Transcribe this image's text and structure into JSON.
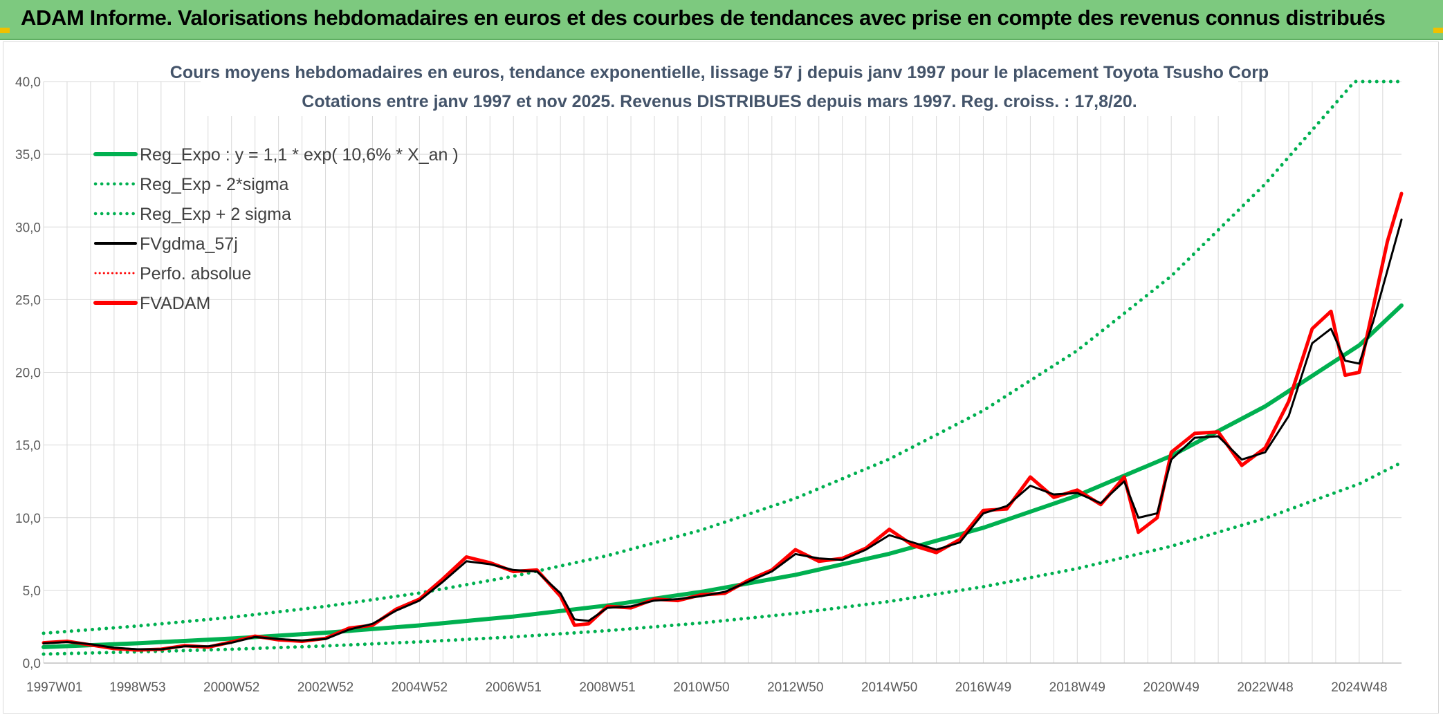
{
  "banner": {
    "title": "ADAM Informe. Valorisations hebdomadaires en euros et des courbes de tendances avec prise en compte des revenus connus distribués"
  },
  "colors": {
    "banner_bg": "#7dc97f",
    "regression": "#00b050",
    "fvgdma": "#000000",
    "fvadam": "#ff0000",
    "perfo": "#ff0000",
    "grid": "#d9d9d9",
    "title_text": "#44546a"
  },
  "chart_data": {
    "type": "line",
    "title": "Cours moyens hebdomadaires en euros, tendance exponentielle, lissage 57 j depuis janv 1997 pour le placement Toyota Tsusho Corp",
    "subtitle": "Cotations entre janv 1997 et nov 2025. Revenus DISTRIBUES depuis mars 1997. Reg. croiss. : 17,8/20.",
    "xlabel": "",
    "ylabel": "",
    "ylim": [
      0,
      40
    ],
    "xlim": [
      1997.0,
      2025.9
    ],
    "yticks": [
      "0,0",
      "5,0",
      "10,0",
      "15,0",
      "20,0",
      "25,0",
      "30,0",
      "35,0",
      "40,0"
    ],
    "xticks": [
      {
        "label": "1997W01",
        "x": 1997.0
      },
      {
        "label": "1998W53",
        "x": 1999.0
      },
      {
        "label": "2000W52",
        "x": 2001.0
      },
      {
        "label": "2002W52",
        "x": 2003.0
      },
      {
        "label": "2004W52",
        "x": 2005.0
      },
      {
        "label": "2006W51",
        "x": 2007.0
      },
      {
        "label": "2008W51",
        "x": 2009.0
      },
      {
        "label": "2010W50",
        "x": 2011.0
      },
      {
        "label": "2012W50",
        "x": 2013.0
      },
      {
        "label": "2014W50",
        "x": 2015.0
      },
      {
        "label": "2016W49",
        "x": 2017.0
      },
      {
        "label": "2018W49",
        "x": 2019.0
      },
      {
        "label": "2020W49",
        "x": 2021.0
      },
      {
        "label": "2022W48",
        "x": 2023.0
      },
      {
        "label": "2024W48",
        "x": 2025.0
      }
    ],
    "grid": true,
    "legend_position": "top-left",
    "legend": [
      {
        "label": "Reg_Expo : y = 1,1 * exp( 10,6% *  X_an )",
        "style": "solid-green-thick"
      },
      {
        "label": "Reg_Exp - 2*sigma",
        "style": "dotted-green"
      },
      {
        "label": "Reg_Exp + 2 sigma",
        "style": "dotted-green"
      },
      {
        "label": "FVgdma_57j",
        "style": "solid-black"
      },
      {
        "label": "Perfo. absolue",
        "style": "dotted-red"
      },
      {
        "label": "FVADAM",
        "style": "solid-red-thick"
      }
    ],
    "series": [
      {
        "name": "Reg_Expo : y = 1,1 * exp( 10,6% *  X_an )",
        "x": [
          1997.0,
          1999.0,
          2001.0,
          2003.0,
          2005.0,
          2007.0,
          2009.0,
          2011.0,
          2013.0,
          2015.0,
          2017.0,
          2019.0,
          2021.0,
          2023.0,
          2025.0,
          2025.9
        ],
        "values": [
          1.1,
          1.36,
          1.69,
          2.09,
          2.59,
          3.2,
          3.96,
          4.9,
          6.07,
          7.52,
          9.31,
          11.52,
          14.26,
          17.66,
          21.86,
          24.6
        ]
      },
      {
        "name": "Reg_Exp - 2*sigma",
        "x": [
          1997.0,
          1999.0,
          2001.0,
          2003.0,
          2005.0,
          2007.0,
          2009.0,
          2011.0,
          2013.0,
          2015.0,
          2017.0,
          2019.0,
          2021.0,
          2023.0,
          2025.0,
          2025.9
        ],
        "values": [
          0.62,
          0.77,
          0.95,
          1.18,
          1.46,
          1.8,
          2.23,
          2.76,
          3.42,
          4.24,
          5.25,
          6.5,
          8.04,
          9.96,
          12.33,
          13.8
        ]
      },
      {
        "name": "Reg_Exp + 2 sigma",
        "x": [
          1997.0,
          1999.0,
          2001.0,
          2003.0,
          2005.0,
          2007.0,
          2009.0,
          2011.0,
          2013.0,
          2015.0,
          2017.0,
          2019.0,
          2021.0,
          2023.0,
          2024.9,
          2025.9
        ],
        "values": [
          2.05,
          2.55,
          3.15,
          3.9,
          4.82,
          5.97,
          7.39,
          9.15,
          11.33,
          14.03,
          17.37,
          21.5,
          26.62,
          32.96,
          40.0,
          40.0
        ]
      },
      {
        "name": "FVgdma_57j",
        "x": [
          1997.0,
          1997.5,
          1998.0,
          1998.5,
          1999.0,
          1999.5,
          2000.0,
          2000.5,
          2001.0,
          2001.5,
          2002.0,
          2002.5,
          2003.0,
          2003.5,
          2004.0,
          2004.5,
          2005.0,
          2005.5,
          2006.0,
          2006.5,
          2007.0,
          2007.5,
          2008.0,
          2008.3,
          2008.6,
          2009.0,
          2009.5,
          2010.0,
          2010.5,
          2011.0,
          2011.5,
          2012.0,
          2012.5,
          2013.0,
          2013.5,
          2014.0,
          2014.5,
          2015.0,
          2015.5,
          2016.0,
          2016.5,
          2017.0,
          2017.5,
          2018.0,
          2018.5,
          2019.0,
          2019.5,
          2020.0,
          2020.3,
          2020.7,
          2021.0,
          2021.5,
          2022.0,
          2022.5,
          2023.0,
          2023.5,
          2024.0,
          2024.4,
          2024.7,
          2025.0,
          2025.3,
          2025.6,
          2025.9
        ],
        "values": [
          1.35,
          1.45,
          1.3,
          1.05,
          0.95,
          0.95,
          1.15,
          1.15,
          1.4,
          1.8,
          1.65,
          1.55,
          1.65,
          2.3,
          2.7,
          3.6,
          4.3,
          5.6,
          7.0,
          6.8,
          6.4,
          6.3,
          4.8,
          3.0,
          2.9,
          3.8,
          3.9,
          4.3,
          4.4,
          4.6,
          4.9,
          5.6,
          6.3,
          7.5,
          7.2,
          7.1,
          7.8,
          8.8,
          8.3,
          7.8,
          8.3,
          10.3,
          10.8,
          12.2,
          11.6,
          11.7,
          11.0,
          12.5,
          10.0,
          10.3,
          14.0,
          15.5,
          15.6,
          14.0,
          14.5,
          17.0,
          22.0,
          23.0,
          20.8,
          20.6,
          23.5,
          27.0,
          30.5
        ]
      },
      {
        "name": "FVADAM",
        "x": [
          1997.0,
          1997.5,
          1998.0,
          1998.5,
          1999.0,
          1999.5,
          2000.0,
          2000.5,
          2001.0,
          2001.5,
          2002.0,
          2002.5,
          2003.0,
          2003.5,
          2004.0,
          2004.5,
          2005.0,
          2005.5,
          2006.0,
          2006.5,
          2007.0,
          2007.5,
          2008.0,
          2008.3,
          2008.6,
          2009.0,
          2009.5,
          2010.0,
          2010.5,
          2011.0,
          2011.5,
          2012.0,
          2012.5,
          2013.0,
          2013.5,
          2014.0,
          2014.5,
          2015.0,
          2015.5,
          2016.0,
          2016.5,
          2017.0,
          2017.5,
          2018.0,
          2018.5,
          2019.0,
          2019.5,
          2020.0,
          2020.3,
          2020.7,
          2021.0,
          2021.5,
          2022.0,
          2022.5,
          2023.0,
          2023.5,
          2024.0,
          2024.4,
          2024.7,
          2025.0,
          2025.3,
          2025.6,
          2025.9
        ],
        "values": [
          1.4,
          1.5,
          1.25,
          1.0,
          0.9,
          0.95,
          1.2,
          1.1,
          1.45,
          1.85,
          1.6,
          1.5,
          1.7,
          2.4,
          2.6,
          3.7,
          4.4,
          5.8,
          7.3,
          6.9,
          6.3,
          6.4,
          4.6,
          2.6,
          2.7,
          3.9,
          3.8,
          4.4,
          4.3,
          4.7,
          4.8,
          5.7,
          6.4,
          7.8,
          7.0,
          7.2,
          7.9,
          9.2,
          8.1,
          7.6,
          8.5,
          10.5,
          10.6,
          12.8,
          11.4,
          11.9,
          10.9,
          12.8,
          9.0,
          10.0,
          14.5,
          15.8,
          15.9,
          13.6,
          14.8,
          18.0,
          23.0,
          24.2,
          19.8,
          20.0,
          24.5,
          29.0,
          32.3
        ]
      }
    ]
  }
}
